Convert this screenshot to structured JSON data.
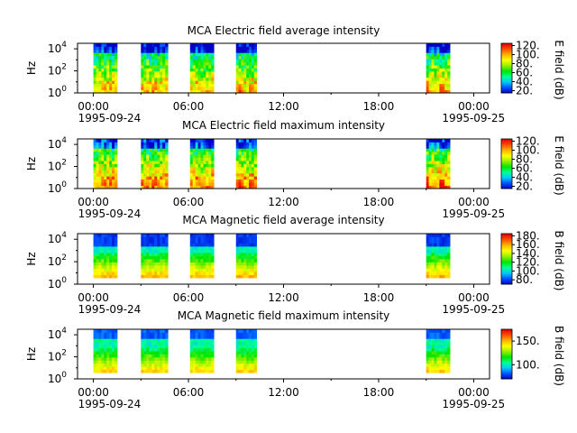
{
  "figure": {
    "y_axis_label": "Hz",
    "date_start": "1995-09-24",
    "date_end": "1995-09-25"
  },
  "colormap_stops": [
    "#0000c8",
    "#0050ff",
    "#00c8ff",
    "#00ff96",
    "#00e600",
    "#96f000",
    "#ffff00",
    "#ffb400",
    "#ff5000",
    "#e60000"
  ],
  "chart_data": [
    {
      "type": "heatmap",
      "title": "MCA  Electric field average intensity",
      "xlabel": "",
      "ylabel": "Hz",
      "xlim_hours": [
        -1,
        25
      ],
      "x_ticks": [
        "00:00",
        "06:00",
        "12:00",
        "18:00",
        "00:00"
      ],
      "x_tick_hours": [
        0,
        6,
        12,
        18,
        24
      ],
      "ylim_log10_hz": [
        0,
        4.5
      ],
      "y_ticks": [
        "10",
        "10",
        "10"
      ],
      "y_tick_exponents": [
        "0",
        "2",
        "4"
      ],
      "colorbar_label": "E field (dB)",
      "colorbar_range": [
        15,
        125
      ],
      "colorbar_ticks": [
        "20.",
        "40.",
        "60.",
        "80.",
        "100.",
        "120."
      ],
      "colorbar_tick_values": [
        20,
        40,
        60,
        80,
        100,
        120
      ],
      "data_blocks_hours": [
        [
          0,
          1.5
        ],
        [
          3,
          4.7
        ],
        [
          6.1,
          7.6
        ],
        [
          9,
          10.3
        ],
        [
          21,
          22.5
        ]
      ],
      "profile": "e_avg"
    },
    {
      "type": "heatmap",
      "title": "MCA  Electric field maximum intensity",
      "xlabel": "",
      "ylabel": "Hz",
      "xlim_hours": [
        -1,
        25
      ],
      "x_ticks": [
        "00:00",
        "06:00",
        "12:00",
        "18:00",
        "00:00"
      ],
      "x_tick_hours": [
        0,
        6,
        12,
        18,
        24
      ],
      "ylim_log10_hz": [
        0,
        4.5
      ],
      "y_ticks": [
        "10",
        "10",
        "10"
      ],
      "y_tick_exponents": [
        "0",
        "2",
        "4"
      ],
      "colorbar_label": "E field (dB)",
      "colorbar_range": [
        15,
        125
      ],
      "colorbar_ticks": [
        "20.",
        "40.",
        "60.",
        "80.",
        "100.",
        "120."
      ],
      "colorbar_tick_values": [
        20,
        40,
        60,
        80,
        100,
        120
      ],
      "data_blocks_hours": [
        [
          0,
          1.5
        ],
        [
          3,
          4.7
        ],
        [
          6.1,
          7.6
        ],
        [
          9,
          10.3
        ],
        [
          21,
          22.5
        ]
      ],
      "profile": "e_max"
    },
    {
      "type": "heatmap",
      "title": "MCA  Magnetic field average intensity",
      "xlabel": "",
      "ylabel": "Hz",
      "xlim_hours": [
        -1,
        25
      ],
      "x_ticks": [
        "00:00",
        "06:00",
        "12:00",
        "18:00",
        "00:00"
      ],
      "x_tick_hours": [
        0,
        6,
        12,
        18,
        24
      ],
      "ylim_log10_hz": [
        0,
        4.5
      ],
      "y_ticks": [
        "10",
        "10",
        "10"
      ],
      "y_tick_exponents": [
        "0",
        "2",
        "4"
      ],
      "colorbar_label": "B field (dB)",
      "colorbar_range": [
        70,
        185
      ],
      "colorbar_ticks": [
        "80.",
        "100.",
        "120.",
        "140.",
        "160.",
        "180."
      ],
      "colorbar_tick_values": [
        80,
        100,
        120,
        140,
        160,
        180
      ],
      "data_blocks_hours": [
        [
          0,
          1.5
        ],
        [
          3,
          4.7
        ],
        [
          6.1,
          7.6
        ],
        [
          9,
          10.3
        ],
        [
          21,
          22.5
        ]
      ],
      "profile": "b_avg"
    },
    {
      "type": "heatmap",
      "title": "MCA  Magnetic field maximum intensity",
      "xlabel": "",
      "ylabel": "Hz",
      "xlim_hours": [
        -1,
        25
      ],
      "x_ticks": [
        "00:00",
        "06:00",
        "12:00",
        "18:00",
        "00:00"
      ],
      "x_tick_hours": [
        0,
        6,
        12,
        18,
        24
      ],
      "ylim_log10_hz": [
        0,
        4.5
      ],
      "y_ticks": [
        "10",
        "10",
        "10"
      ],
      "y_tick_exponents": [
        "0",
        "2",
        "4"
      ],
      "colorbar_label": "B field (dB)",
      "colorbar_range": [
        70,
        175
      ],
      "colorbar_ticks": [
        "100.",
        "150."
      ],
      "colorbar_tick_values": [
        100,
        150
      ],
      "data_blocks_hours": [
        [
          0,
          1.5
        ],
        [
          3,
          4.7
        ],
        [
          6.1,
          7.6
        ],
        [
          9,
          10.3
        ],
        [
          21,
          22.5
        ]
      ],
      "profile": "b_max"
    }
  ]
}
